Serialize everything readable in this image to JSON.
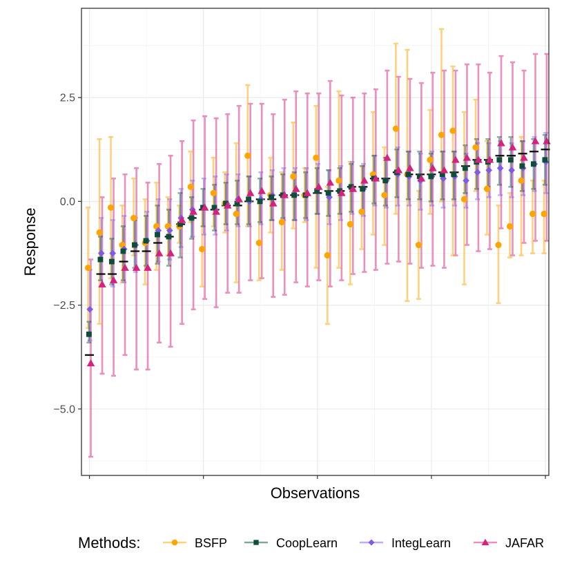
{
  "chart_data": {
    "type": "scatter",
    "xlabel": "Observations",
    "ylabel": "Response",
    "xlim": [
      0.3,
      41.3
    ],
    "ylim": [
      -6.6,
      4.65
    ],
    "yticks": [
      -5.0,
      -2.5,
      0.0,
      2.5
    ],
    "ytick_labels": [
      "−5.0",
      "−2.5",
      "0.0",
      "2.5"
    ],
    "xmajor_ticks": [
      1,
      11,
      21,
      31,
      41
    ],
    "grid": "on",
    "legend": {
      "title": "Methods:",
      "position": "bottom",
      "entries": [
        {
          "name": "BSFP",
          "color": "#FFA500",
          "shape": "circle"
        },
        {
          "name": "CoopLearn",
          "color": "#0E4D3A",
          "shape": "square"
        },
        {
          "name": "IntegLearn",
          "color": "#7B5BE8",
          "shape": "diamond"
        },
        {
          "name": "JAFAR",
          "color": "#D6217F",
          "shape": "triangle"
        }
      ]
    },
    "x": [
      1,
      2,
      3,
      4,
      5,
      6,
      7,
      8,
      9,
      10,
      11,
      12,
      13,
      14,
      15,
      16,
      17,
      18,
      19,
      20,
      21,
      22,
      23,
      24,
      25,
      26,
      27,
      28,
      29,
      30,
      31,
      32,
      33,
      34,
      35,
      36,
      37,
      38,
      39,
      40,
      41
    ],
    "truth": [
      -3.7,
      -1.75,
      -1.75,
      -1.45,
      -1.2,
      -1.2,
      -1.0,
      -0.85,
      -0.55,
      -0.4,
      -0.2,
      -0.2,
      -0.1,
      -0.1,
      0.0,
      0.05,
      0.05,
      0.15,
      0.15,
      0.15,
      0.2,
      0.25,
      0.25,
      0.35,
      0.35,
      0.55,
      0.55,
      0.7,
      0.65,
      0.65,
      0.65,
      0.7,
      0.7,
      0.85,
      1.0,
      1.0,
      1.1,
      1.1,
      1.15,
      1.2,
      1.25
    ],
    "series": [
      {
        "name": "BSFP",
        "values": [
          -1.6,
          -0.75,
          -0.15,
          -1.05,
          -0.4,
          -1.0,
          -0.6,
          -0.6,
          -0.6,
          0.35,
          -1.15,
          0.2,
          -0.05,
          -0.3,
          1.1,
          -1.0,
          0.15,
          -0.5,
          0.6,
          0.15,
          1.05,
          -1.3,
          0.5,
          -0.55,
          -0.25,
          0.65,
          0.15,
          1.75,
          0.65,
          -1.05,
          1.0,
          1.6,
          1.7,
          0.05,
          1.3,
          0.3,
          -1.05,
          -0.6,
          0.5,
          -0.3,
          -0.3
        ],
        "lower": [
          -3.05,
          -2.95,
          -1.85,
          -1.95,
          -1.3,
          -2.0,
          -1.65,
          -1.3,
          -1.0,
          -0.5,
          -2.05,
          -0.6,
          -0.75,
          -1.95,
          -0.6,
          -1.9,
          -0.75,
          -1.65,
          -0.65,
          -0.5,
          -1.6,
          -2.95,
          -1.6,
          -2.0,
          -1.15,
          -0.8,
          -1.05,
          -0.3,
          -2.4,
          -2.35,
          -0.3,
          0.0,
          -1.3,
          -2.0,
          0.25,
          -0.8,
          -2.45,
          -1.35,
          -1.3,
          -1.25,
          -1.25
        ],
        "upper": [
          -0.15,
          1.5,
          1.55,
          -0.1,
          0.55,
          0.05,
          0.45,
          0.1,
          -0.1,
          1.2,
          -0.2,
          1.05,
          0.7,
          1.4,
          2.8,
          -0.05,
          1.05,
          0.7,
          1.9,
          0.8,
          2.3,
          0.35,
          2.65,
          0.95,
          0.85,
          2.15,
          1.3,
          3.8,
          3.65,
          0.25,
          2.2,
          4.15,
          3.25,
          2.15,
          2.45,
          1.45,
          -0.1,
          0.2,
          1.55,
          0.5,
          0.5
        ]
      },
      {
        "name": "CoopLearn",
        "values": [
          -3.2,
          -1.4,
          -1.45,
          -1.2,
          -1.05,
          -0.95,
          -0.8,
          -0.85,
          -0.55,
          -0.4,
          -0.15,
          -0.15,
          -0.05,
          -0.05,
          0.05,
          0.0,
          0.1,
          0.15,
          0.15,
          0.15,
          0.25,
          0.2,
          0.25,
          0.35,
          0.3,
          0.55,
          0.5,
          0.7,
          0.65,
          0.6,
          0.6,
          0.65,
          0.65,
          0.8,
          0.95,
          0.95,
          1.0,
          1.0,
          0.85,
          0.9,
          1.0
        ],
        "lower": [
          -3.4,
          -1.9,
          -2.0,
          -1.9,
          -1.6,
          -1.55,
          -1.5,
          -1.55,
          -1.35,
          -0.9,
          -0.6,
          -0.7,
          -0.55,
          -0.55,
          -0.55,
          -0.5,
          -0.45,
          -0.4,
          -0.45,
          -0.4,
          -0.3,
          -0.35,
          -0.3,
          -0.25,
          -0.25,
          -0.05,
          -0.1,
          0.1,
          0.05,
          0.05,
          0.0,
          0.05,
          0.05,
          0.2,
          0.3,
          0.35,
          0.4,
          0.35,
          0.25,
          0.3,
          0.4
        ],
        "upper": [
          -2.9,
          -0.85,
          -0.9,
          -0.6,
          -0.45,
          -0.35,
          -0.1,
          -0.2,
          0.2,
          0.1,
          0.3,
          0.4,
          0.45,
          0.5,
          0.6,
          0.55,
          0.6,
          0.65,
          0.7,
          0.7,
          0.8,
          0.75,
          0.8,
          0.9,
          0.85,
          1.1,
          1.05,
          1.25,
          1.2,
          1.2,
          1.15,
          1.2,
          1.2,
          1.35,
          1.5,
          1.5,
          1.55,
          1.55,
          1.45,
          1.5,
          1.6
        ]
      },
      {
        "name": "IntegLearn",
        "values": [
          -2.6,
          -1.25,
          -1.25,
          -1.15,
          -1.05,
          -0.95,
          -0.7,
          -0.7,
          -0.4,
          -0.2,
          -0.15,
          -0.2,
          -0.05,
          0.05,
          0.0,
          0.05,
          0.15,
          0.15,
          0.15,
          0.15,
          0.3,
          0.1,
          0.2,
          0.3,
          0.3,
          0.55,
          0.5,
          0.65,
          0.6,
          0.5,
          0.6,
          0.55,
          0.6,
          0.5,
          0.7,
          0.75,
          0.8,
          0.75,
          0.8,
          0.9,
          0.95
        ],
        "lower": [
          -3.35,
          -2.05,
          -2.05,
          -1.95,
          -1.7,
          -1.6,
          -1.45,
          -1.4,
          -1.1,
          -0.85,
          -0.8,
          -0.8,
          -0.7,
          -0.6,
          -0.6,
          -0.55,
          -0.45,
          -0.45,
          -0.45,
          -0.45,
          -0.3,
          -0.55,
          -0.45,
          -0.3,
          -0.35,
          -0.1,
          -0.15,
          -0.1,
          -0.1,
          -0.2,
          -0.1,
          -0.15,
          -0.1,
          -0.15,
          0.05,
          0.1,
          0.15,
          0.1,
          0.15,
          0.25,
          0.2
        ],
        "upper": [
          -1.65,
          -0.4,
          -0.45,
          -0.35,
          -0.4,
          -0.25,
          0.05,
          0.05,
          0.3,
          0.5,
          0.55,
          0.6,
          0.65,
          0.65,
          0.6,
          0.7,
          0.75,
          0.8,
          0.8,
          0.8,
          0.9,
          0.75,
          0.85,
          0.95,
          0.9,
          1.1,
          1.05,
          1.3,
          1.2,
          1.15,
          1.2,
          1.2,
          1.2,
          1.15,
          1.4,
          1.4,
          1.45,
          1.4,
          1.45,
          1.55,
          1.65
        ]
      },
      {
        "name": "JAFAR",
        "values": [
          -3.9,
          -2.0,
          -1.9,
          -1.6,
          -1.6,
          -1.6,
          -1.25,
          -1.25,
          -0.45,
          -0.25,
          -0.15,
          -0.25,
          -0.1,
          0.05,
          0.2,
          0.25,
          -0.05,
          0.15,
          0.3,
          0.2,
          0.35,
          0.45,
          0.2,
          0.3,
          0.5,
          0.55,
          1.05,
          0.75,
          0.8,
          0.55,
          0.8,
          0.75,
          1.0,
          1.05,
          1.0,
          1.0,
          1.4,
          1.3,
          1.05,
          1.45,
          1.45
        ],
        "lower": [
          -6.15,
          -4.15,
          -4.2,
          -3.7,
          -4.05,
          -4.05,
          -3.4,
          -3.5,
          -2.95,
          -2.6,
          -2.35,
          -2.55,
          -2.2,
          -2.2,
          -1.9,
          -1.85,
          -2.3,
          -2.25,
          -1.95,
          -2.05,
          -1.9,
          -2.05,
          -1.9,
          -1.75,
          -1.7,
          -1.65,
          -1.5,
          -1.45,
          -1.5,
          -1.6,
          -1.55,
          -1.6,
          -1.3,
          -1.05,
          -1.2,
          -1.15,
          -0.65,
          -1.3,
          -1.0,
          -0.95,
          -0.95
        ],
        "upper": [
          -1.4,
          0.1,
          0.55,
          0.65,
          0.8,
          0.45,
          0.9,
          1.1,
          1.45,
          1.95,
          2.05,
          2.0,
          2.1,
          2.3,
          2.35,
          2.35,
          2.1,
          2.45,
          2.65,
          2.6,
          2.6,
          2.9,
          2.55,
          2.5,
          2.6,
          2.7,
          3.15,
          3.0,
          2.95,
          2.85,
          3.1,
          3.15,
          3.15,
          3.3,
          3.3,
          3.1,
          3.5,
          3.35,
          3.15,
          3.55,
          3.55
        ]
      }
    ]
  }
}
